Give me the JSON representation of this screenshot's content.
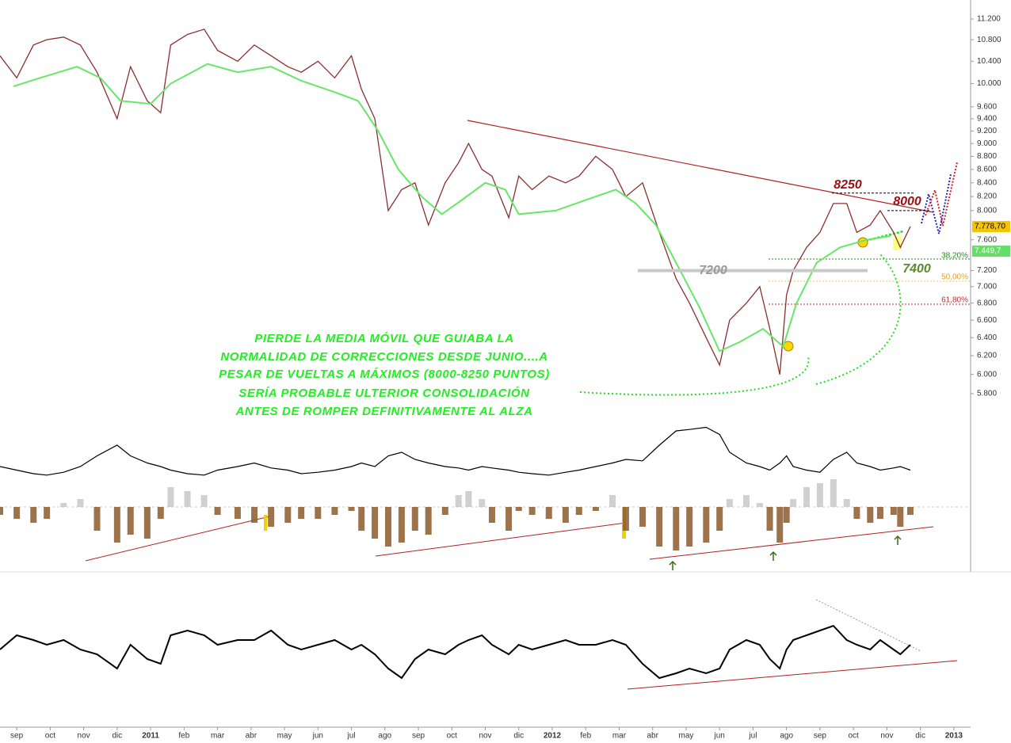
{
  "chart_data": [
    {
      "type": "line",
      "log_scale": true,
      "xlim": [
        -0.5,
        28.5
      ],
      "ylim": [
        5540,
        11580
      ],
      "xticks": [
        {
          "value": 0,
          "label": "sep"
        },
        {
          "value": 1,
          "label": "oct"
        },
        {
          "value": 2,
          "label": "nov"
        },
        {
          "value": 3,
          "label": "dic"
        },
        {
          "value": 4,
          "label": "2011"
        },
        {
          "value": 5,
          "label": "feb"
        },
        {
          "value": 6,
          "label": "mar"
        },
        {
          "value": 7,
          "label": "abr"
        },
        {
          "value": 8,
          "label": "may"
        },
        {
          "value": 9,
          "label": "jun"
        },
        {
          "value": 10,
          "label": "jul"
        },
        {
          "value": 11,
          "label": "ago"
        },
        {
          "value": 12,
          "label": "sep"
        },
        {
          "value": 13,
          "label": "oct"
        },
        {
          "value": 14,
          "label": "nov"
        },
        {
          "value": 15,
          "label": "dic"
        },
        {
          "value": 16,
          "label": "2012"
        },
        {
          "value": 17,
          "label": "feb"
        },
        {
          "value": 18,
          "label": "mar"
        },
        {
          "value": 19,
          "label": "abr"
        },
        {
          "value": 20,
          "label": "may"
        },
        {
          "value": 21,
          "label": "jun"
        },
        {
          "value": 22,
          "label": "jul"
        },
        {
          "value": 23,
          "label": "ago"
        },
        {
          "value": 24,
          "label": "sep"
        },
        {
          "value": 25,
          "label": "oct"
        },
        {
          "value": 26,
          "label": "nov"
        },
        {
          "value": 27,
          "label": "dic"
        },
        {
          "value": 28,
          "label": "2013"
        }
      ],
      "yticks": [
        {
          "value": 11200,
          "label": "11.200"
        },
        {
          "value": 10800,
          "label": "10.800"
        },
        {
          "value": 10400,
          "label": "10.400"
        },
        {
          "value": 10000,
          "label": "10.000"
        },
        {
          "value": 9600,
          "label": "9.600"
        },
        {
          "value": 9400,
          "label": "9.400"
        },
        {
          "value": 9200,
          "label": "9.200"
        },
        {
          "value": 9000,
          "label": "9.000"
        },
        {
          "value": 8800,
          "label": "8.800"
        },
        {
          "value": 8600,
          "label": "8.600"
        },
        {
          "value": 8400,
          "label": "8.400"
        },
        {
          "value": 8200,
          "label": "8.200"
        },
        {
          "value": 8000,
          "label": "8.000"
        },
        {
          "value": 7600,
          "label": "7.600"
        },
        {
          "value": 7200,
          "label": "7.200"
        },
        {
          "value": 7000,
          "label": "7.000"
        },
        {
          "value": 6800,
          "label": "6.800"
        },
        {
          "value": 6600,
          "label": "6.600"
        },
        {
          "value": 6400,
          "label": "6.400"
        },
        {
          "value": 6200,
          "label": "6.200"
        },
        {
          "value": 6000,
          "label": "6.000"
        },
        {
          "value": 5800,
          "label": "5.800"
        }
      ],
      "series": [
        {
          "color": "#8b2f2f",
          "x": [
            -0.5,
            0,
            0.5,
            0.9,
            1.4,
            1.9,
            2.4,
            3.0,
            3.4,
            3.9,
            4.3,
            4.6,
            5.1,
            5.6,
            6.0,
            6.6,
            7.1,
            7.6,
            8.1,
            8.5,
            9.0,
            9.5,
            10.0,
            10.3,
            10.7,
            11.1,
            11.5,
            11.9,
            12.3,
            12.8,
            13.2,
            13.5,
            13.9,
            14.2,
            14.7,
            15.0,
            15.4,
            15.9,
            16.4,
            16.8,
            17.3,
            17.8,
            18.2,
            18.7,
            19.2,
            19.7,
            20.1,
            20.6,
            21.0,
            21.3,
            21.8,
            22.2,
            22.5,
            22.8,
            23.0,
            23.2,
            23.6,
            24.0,
            24.4,
            24.8,
            25.1,
            25.5,
            25.8,
            26.2,
            26.4,
            26.7
          ],
          "values": [
            10500,
            10100,
            10700,
            10800,
            10850,
            10700,
            10200,
            9400,
            10300,
            9700,
            9500,
            10700,
            10900,
            11000,
            10600,
            10400,
            10700,
            10500,
            10300,
            10200,
            10400,
            10100,
            10500,
            9900,
            9400,
            8000,
            8300,
            8400,
            7800,
            8400,
            8700,
            9000,
            8600,
            8500,
            7900,
            8500,
            8300,
            8500,
            8400,
            8500,
            8800,
            8600,
            8200,
            8400,
            7700,
            7100,
            6800,
            6400,
            6100,
            6600,
            6800,
            7000,
            6500,
            6000,
            6900,
            7200,
            7500,
            7700,
            8100,
            8100,
            7700,
            7800,
            8000,
            7700,
            7500,
            7780
          ]
        },
        {
          "color": "#66e866",
          "x": [
            -0.1,
            0.7,
            1.8,
            2.5,
            3.1,
            4.0,
            4.6,
            5.7,
            6.6,
            7.6,
            8.5,
            9.5,
            10.2,
            10.8,
            11.4,
            12.1,
            12.7,
            13.3,
            14.0,
            14.6,
            15.0,
            16.1,
            17.3,
            17.9,
            18.5,
            19.1,
            19.7,
            20.4,
            21.0,
            21.6,
            22.3,
            22.9,
            23.3,
            23.9,
            24.6,
            25.4,
            26.1
          ],
          "values": [
            9950,
            10100,
            10300,
            10100,
            9700,
            9650,
            10000,
            10350,
            10200,
            10300,
            10050,
            9850,
            9700,
            9200,
            8600,
            8200,
            7950,
            8150,
            8400,
            8300,
            7950,
            8000,
            8200,
            8300,
            8100,
            7800,
            7300,
            6750,
            6250,
            6350,
            6500,
            6300,
            6800,
            7300,
            7500,
            7600,
            7650
          ]
        }
      ],
      "last_price": {
        "value": 7778.7,
        "label": "7.778,70"
      },
      "last_average": {
        "value": 7449.7,
        "label": "7.449,7"
      },
      "levels": [
        8250,
        8000,
        7200,
        7400
      ],
      "fib_labels": [
        "38,20%",
        "50,00%",
        "61,80%"
      ],
      "comment": [
        "PIERDE LA MEDIA MÓVIL QUE GUIABA LA",
        "NORMALIDAD DE CORRECCIONES DESDE JUNIO....A",
        "PESAR DE VUELTAS A MÁXIMOS (8000-8250 PUNTOS)",
        "SERÍA PROBABLE ULTERIOR CONSOLIDACIÓN",
        "ANTES DE ROMPER DEFINITIVAMENTE AL ALZA"
      ]
    },
    {
      "type": "bar",
      "xlim": [
        -0.5,
        28.5
      ],
      "ylim": [
        -60,
        100
      ],
      "y2lim": [
        0,
        100
      ],
      "color": "#8b5a2b",
      "positive_color": "#c8c8c8",
      "x": [
        -0.5,
        0,
        0.5,
        0.9,
        1.4,
        1.9,
        2.4,
        3.0,
        3.4,
        3.9,
        4.3,
        4.6,
        5.1,
        5.6,
        6.0,
        6.6,
        7.1,
        7.6,
        8.1,
        8.5,
        9.0,
        9.5,
        10.0,
        10.3,
        10.7,
        11.1,
        11.5,
        11.9,
        12.3,
        12.8,
        13.2,
        13.5,
        13.9,
        14.2,
        14.7,
        15.0,
        15.4,
        15.9,
        16.4,
        16.8,
        17.3,
        17.8,
        18.2,
        18.7,
        19.2,
        19.7,
        20.1,
        20.6,
        21.0,
        21.3,
        21.8,
        22.2,
        22.5,
        22.8,
        23.0,
        23.2,
        23.6,
        24.0,
        24.4,
        24.8,
        25.1,
        25.5,
        25.8,
        26.2,
        26.4,
        26.7
      ],
      "values": [
        -10,
        -15,
        -20,
        -15,
        5,
        10,
        -30,
        -45,
        -35,
        -40,
        -15,
        25,
        20,
        15,
        -10,
        -15,
        -20,
        -25,
        -20,
        -15,
        -15,
        -10,
        -5,
        -30,
        -40,
        -50,
        -45,
        -30,
        -35,
        -10,
        15,
        20,
        10,
        -20,
        -30,
        -5,
        -10,
        -15,
        -20,
        -10,
        -5,
        15,
        -30,
        -25,
        -50,
        -55,
        -50,
        -45,
        -30,
        10,
        15,
        5,
        -30,
        -45,
        -20,
        10,
        25,
        30,
        35,
        10,
        -15,
        -20,
        -15,
        -10,
        -25,
        -10
      ],
      "series": [
        {
          "color": "#000000",
          "axis": "y2",
          "values": [
            40,
            35,
            30,
            28,
            32,
            40,
            55,
            70,
            55,
            45,
            40,
            35,
            30,
            28,
            35,
            40,
            45,
            38,
            35,
            30,
            32,
            35,
            40,
            45,
            40,
            55,
            60,
            50,
            45,
            40,
            38,
            35,
            40,
            38,
            35,
            32,
            30,
            28,
            32,
            35,
            40,
            45,
            50,
            48,
            70,
            90,
            92,
            95,
            85,
            60,
            45,
            40,
            35,
            45,
            55,
            40,
            35,
            32,
            50,
            60,
            45,
            40,
            35,
            38,
            40,
            35
          ]
        }
      ]
    },
    {
      "type": "line",
      "xlim": [
        -0.5,
        28.5
      ],
      "ylim": [
        0,
        100
      ],
      "color": "#000000",
      "x": [
        -0.5,
        0,
        0.5,
        0.9,
        1.4,
        1.9,
        2.4,
        3.0,
        3.4,
        3.9,
        4.3,
        4.6,
        5.1,
        5.6,
        6.0,
        6.6,
        7.1,
        7.6,
        8.1,
        8.5,
        9.0,
        9.5,
        10.0,
        10.3,
        10.7,
        11.1,
        11.5,
        11.9,
        12.3,
        12.8,
        13.2,
        13.5,
        13.9,
        14.2,
        14.7,
        15.0,
        15.4,
        15.9,
        16.4,
        16.8,
        17.3,
        17.8,
        18.2,
        18.7,
        19.2,
        19.7,
        20.1,
        20.6,
        21.0,
        21.3,
        21.8,
        22.2,
        22.5,
        22.8,
        23.0,
        23.2,
        23.6,
        24.0,
        24.4,
        24.8,
        25.1,
        25.5,
        25.8,
        26.2,
        26.4,
        26.7
      ],
      "values": [
        50,
        65,
        60,
        55,
        60,
        50,
        45,
        30,
        55,
        40,
        35,
        65,
        70,
        65,
        55,
        60,
        60,
        70,
        55,
        50,
        55,
        60,
        50,
        55,
        45,
        30,
        20,
        40,
        50,
        45,
        55,
        60,
        65,
        55,
        45,
        55,
        50,
        55,
        60,
        55,
        55,
        60,
        55,
        35,
        20,
        25,
        30,
        25,
        30,
        50,
        60,
        55,
        40,
        30,
        50,
        60,
        65,
        70,
        75,
        60,
        55,
        50,
        60,
        50,
        45,
        55
      ]
    }
  ]
}
